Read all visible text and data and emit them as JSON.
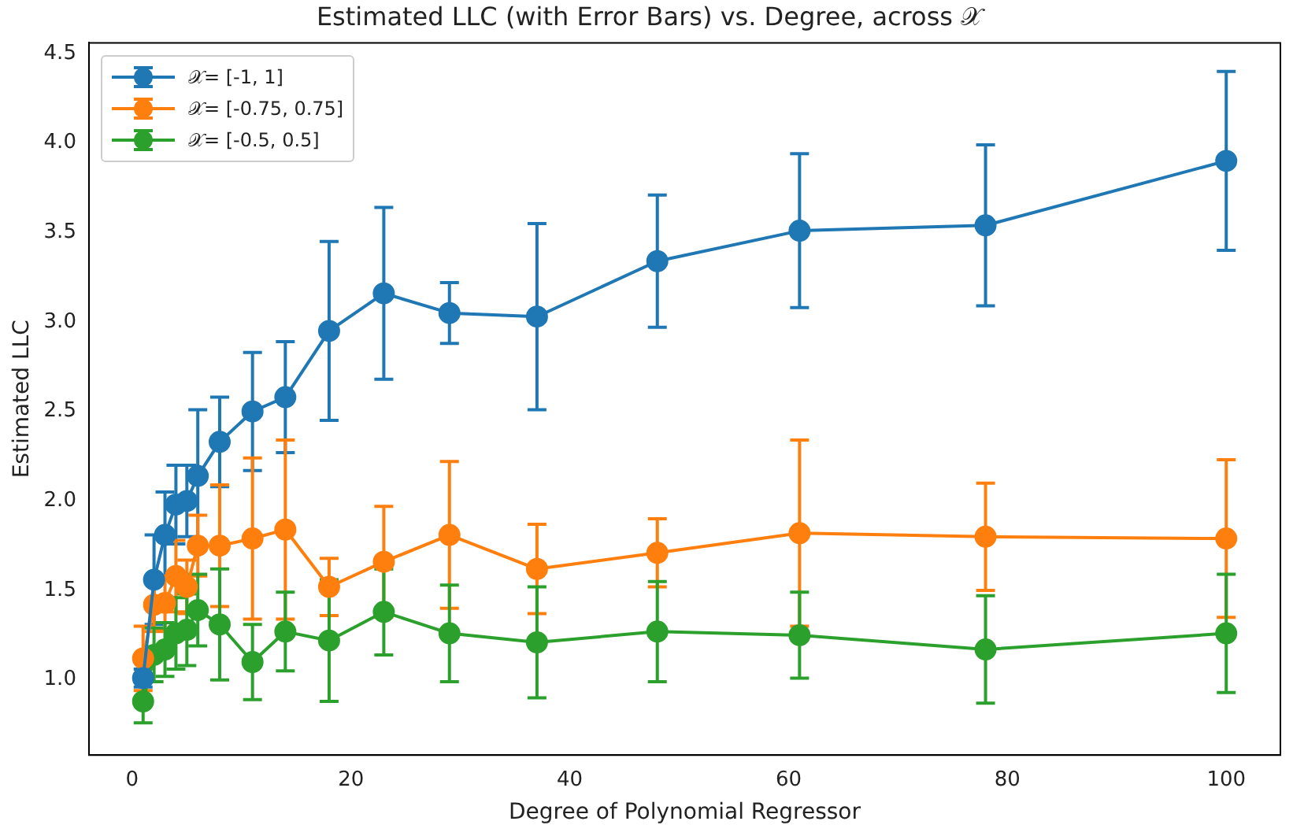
{
  "chart_data": {
    "type": "line",
    "title": "Estimated LLC (with Error Bars) vs. Degree, across 𝒳",
    "xlabel": "Degree of Polynomial Regressor",
    "ylabel": "Estimated LLC",
    "x": [
      1,
      2,
      3,
      4,
      5,
      6,
      8,
      11,
      14,
      18,
      23,
      29,
      37,
      48,
      61,
      78,
      100
    ],
    "series": [
      {
        "name": "𝒳= [-1, 1]",
        "color": "#1f77b4",
        "values": [
          1.01,
          1.56,
          1.81,
          1.98,
          2.0,
          2.14,
          2.33,
          2.5,
          2.58,
          2.95,
          3.16,
          3.05,
          3.03,
          3.34,
          3.51,
          3.54,
          3.9
        ],
        "errors": [
          0.05,
          0.25,
          0.24,
          0.22,
          0.2,
          0.37,
          0.25,
          0.33,
          0.31,
          0.5,
          0.48,
          0.17,
          0.52,
          0.37,
          0.43,
          0.45,
          0.5
        ]
      },
      {
        "name": "𝒳= [-0.75, 0.75]",
        "color": "#ff7f0e",
        "values": [
          1.12,
          1.42,
          1.43,
          1.58,
          1.52,
          1.75,
          1.75,
          1.79,
          1.84,
          1.52,
          1.66,
          1.81,
          1.62,
          1.71,
          1.82,
          1.8,
          1.79
        ],
        "errors": [
          0.18,
          0.15,
          0.15,
          0.2,
          0.15,
          0.17,
          0.34,
          0.45,
          0.5,
          0.16,
          0.31,
          0.41,
          0.25,
          0.19,
          0.52,
          0.3,
          0.44
        ]
      },
      {
        "name": "𝒳= [-0.5, 0.5]",
        "color": "#2ca02c",
        "values": [
          0.88,
          1.14,
          1.17,
          1.26,
          1.28,
          1.39,
          1.31,
          1.1,
          1.27,
          1.22,
          1.38,
          1.26,
          1.21,
          1.27,
          1.25,
          1.17,
          1.26
        ],
        "errors": [
          0.12,
          0.15,
          0.15,
          0.2,
          0.2,
          0.2,
          0.31,
          0.21,
          0.22,
          0.34,
          0.24,
          0.27,
          0.31,
          0.28,
          0.24,
          0.3,
          0.33
        ]
      }
    ],
    "xlim": [
      -3.95,
      104.95
    ],
    "xticks": [
      0,
      20,
      40,
      60,
      80,
      100
    ],
    "ylim": [
      0.58,
      4.56
    ],
    "yticks": [
      {
        "value": 1,
        "label": "1.0"
      },
      {
        "value": 1.5,
        "label": "1.5"
      },
      {
        "value": 2,
        "label": "2.0"
      },
      {
        "value": 2.5,
        "label": "2.5"
      },
      {
        "value": 3,
        "label": "3.0"
      },
      {
        "value": 3.5,
        "label": "3.5"
      },
      {
        "value": 4,
        "label": "4.0"
      },
      {
        "value": 4.5,
        "label": "4.5"
      }
    ],
    "legend": "top left",
    "marker": "circle",
    "line_style": "solid",
    "grid": false
  }
}
